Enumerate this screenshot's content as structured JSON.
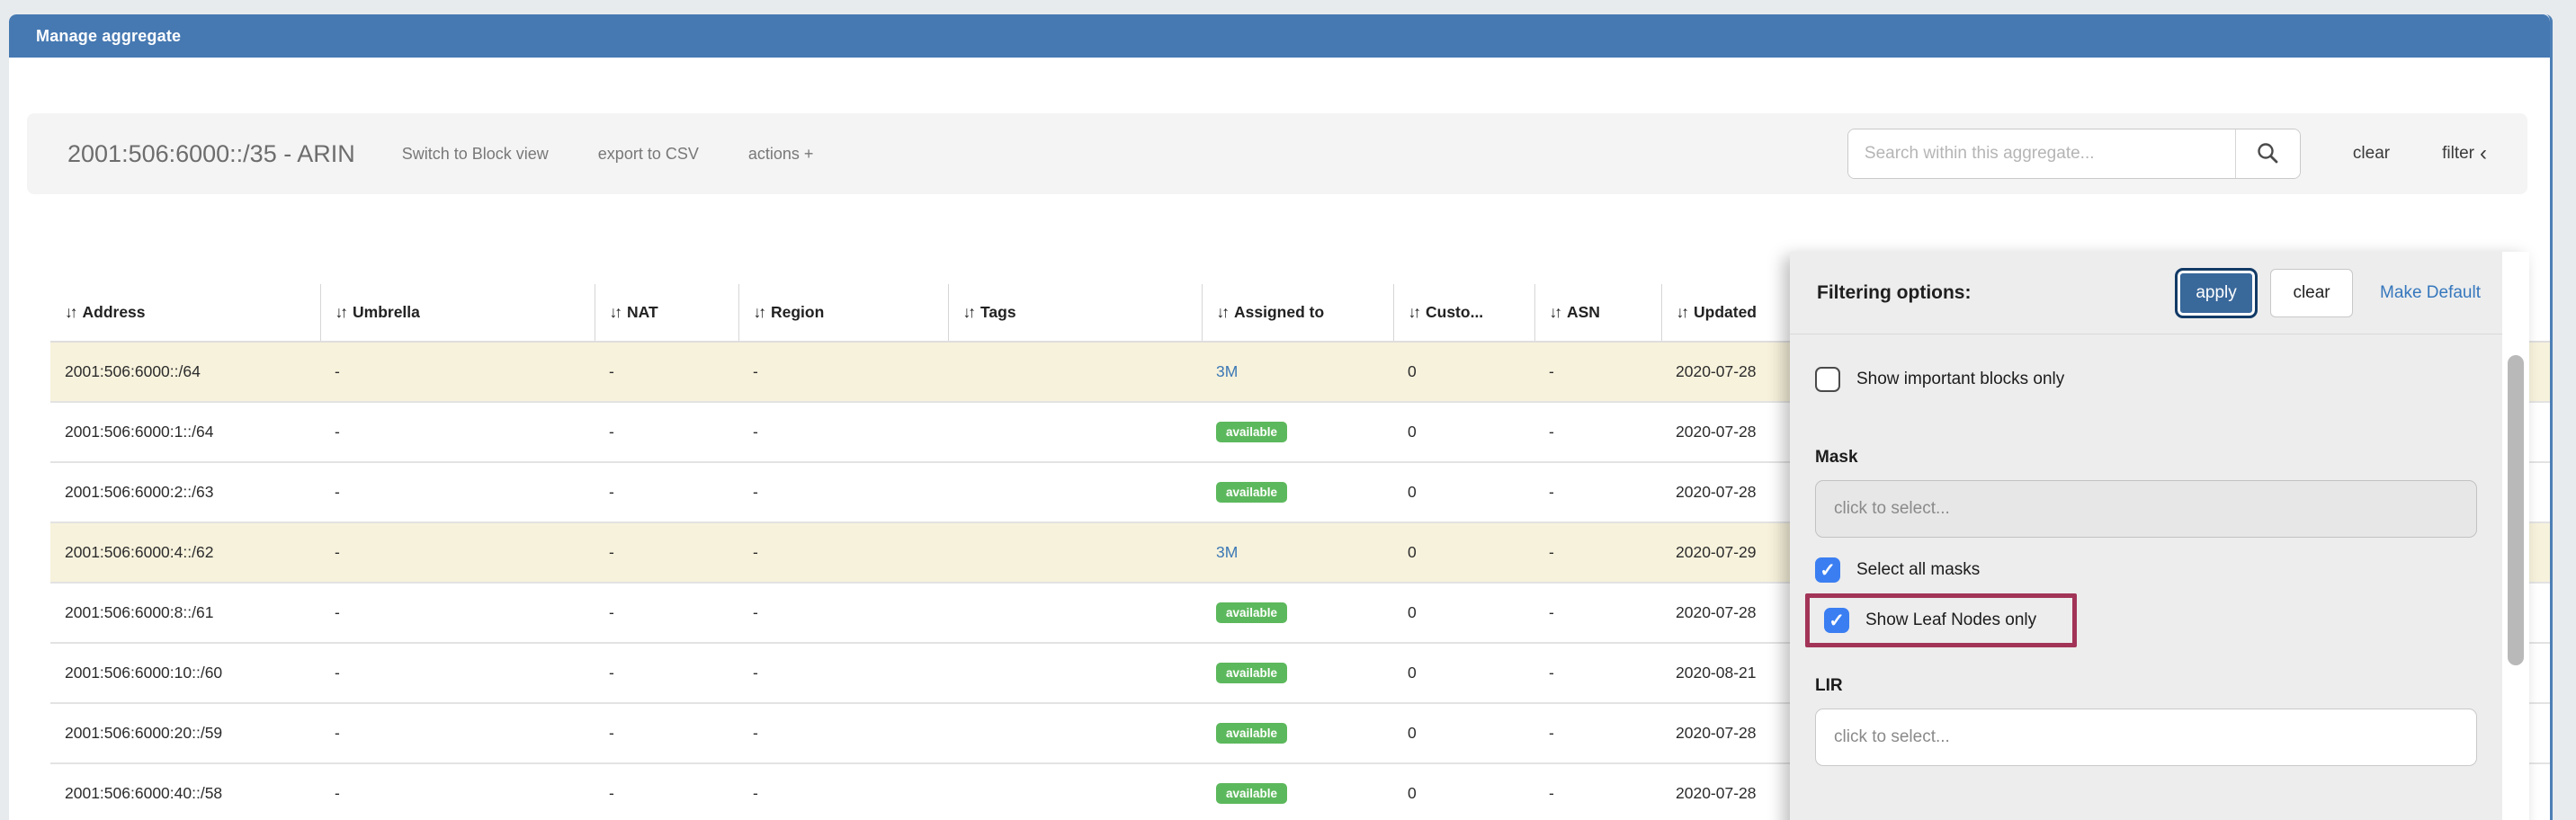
{
  "header": {
    "title": "Manage aggregate"
  },
  "toolbar": {
    "aggregate_title": "2001:506:6000::/35 - ARIN",
    "links": [
      {
        "label": "Switch to Block view"
      },
      {
        "label": "export to CSV"
      },
      {
        "label": "actions +"
      }
    ],
    "search": {
      "placeholder": "Search within this aggregate...",
      "value": ""
    },
    "clear_label": "clear",
    "filter_label": "filter",
    "filter_chevron": "‹"
  },
  "table": {
    "sort_icon": "↓↑",
    "columns": [
      {
        "key": "address",
        "label": "Address"
      },
      {
        "key": "umbrella",
        "label": "Umbrella"
      },
      {
        "key": "nat",
        "label": "NAT"
      },
      {
        "key": "region",
        "label": "Region"
      },
      {
        "key": "tags",
        "label": "Tags"
      },
      {
        "key": "assigned_to",
        "label": "Assigned to"
      },
      {
        "key": "customer",
        "label": "Custo..."
      },
      {
        "key": "asn",
        "label": "ASN"
      },
      {
        "key": "updated",
        "label": "Updated"
      }
    ],
    "rows": [
      {
        "address": "2001:506:6000::/64",
        "umbrella": "-",
        "nat": "-",
        "region": "-",
        "tags": "",
        "assigned_to": {
          "style": "link",
          "text": "3M"
        },
        "customer": "0",
        "asn": "-",
        "updated": "2020-07-28",
        "highlighted": true
      },
      {
        "address": "2001:506:6000:1::/64",
        "umbrella": "-",
        "nat": "-",
        "region": "-",
        "tags": "",
        "assigned_to": {
          "style": "badge",
          "text": "available"
        },
        "customer": "0",
        "asn": "-",
        "updated": "2020-07-28",
        "highlighted": false
      },
      {
        "address": "2001:506:6000:2::/63",
        "umbrella": "-",
        "nat": "-",
        "region": "-",
        "tags": "",
        "assigned_to": {
          "style": "badge",
          "text": "available"
        },
        "customer": "0",
        "asn": "-",
        "updated": "2020-07-28",
        "highlighted": false
      },
      {
        "address": "2001:506:6000:4::/62",
        "umbrella": "-",
        "nat": "-",
        "region": "-",
        "tags": "",
        "assigned_to": {
          "style": "link",
          "text": "3M"
        },
        "customer": "0",
        "asn": "-",
        "updated": "2020-07-29",
        "highlighted": true
      },
      {
        "address": "2001:506:6000:8::/61",
        "umbrella": "-",
        "nat": "-",
        "region": "-",
        "tags": "",
        "assigned_to": {
          "style": "badge",
          "text": "available"
        },
        "customer": "0",
        "asn": "-",
        "updated": "2020-07-28",
        "highlighted": false
      },
      {
        "address": "2001:506:6000:10::/60",
        "umbrella": "-",
        "nat": "-",
        "region": "-",
        "tags": "",
        "assigned_to": {
          "style": "badge",
          "text": "available"
        },
        "customer": "0",
        "asn": "-",
        "updated": "2020-08-21",
        "highlighted": false
      },
      {
        "address": "2001:506:6000:20::/59",
        "umbrella": "-",
        "nat": "-",
        "region": "-",
        "tags": "",
        "assigned_to": {
          "style": "badge",
          "text": "available"
        },
        "customer": "0",
        "asn": "-",
        "updated": "2020-07-28",
        "highlighted": false
      },
      {
        "address": "2001:506:6000:40::/58",
        "umbrella": "-",
        "nat": "-",
        "region": "-",
        "tags": "",
        "assigned_to": {
          "style": "badge",
          "text": "available"
        },
        "customer": "0",
        "asn": "-",
        "updated": "2020-07-28",
        "highlighted": false
      }
    ]
  },
  "filter_panel": {
    "title": "Filtering options:",
    "apply_label": "apply",
    "clear_label": "clear",
    "make_default_label": "Make Default",
    "checkboxes": {
      "show_important": {
        "label": "Show important blocks only",
        "checked": false
      },
      "select_all_masks": {
        "label": "Select all masks",
        "checked": true
      },
      "show_leaf_nodes": {
        "label": "Show Leaf Nodes only",
        "checked": true,
        "highlighted": true
      }
    },
    "mask": {
      "label": "Mask",
      "placeholder": "click to select...",
      "disabled": true
    },
    "lir": {
      "label": "LIR",
      "placeholder": "click to select..."
    }
  },
  "colors": {
    "header_blue": "#4679b2",
    "badge_green": "#5cb85c",
    "link_blue": "#3b78b5",
    "highlight_row": "#f7f2dc",
    "checkbox_blue": "#3a7ef2",
    "annotation_maroon": "#a23458",
    "apply_button_blue": "#39689b"
  }
}
